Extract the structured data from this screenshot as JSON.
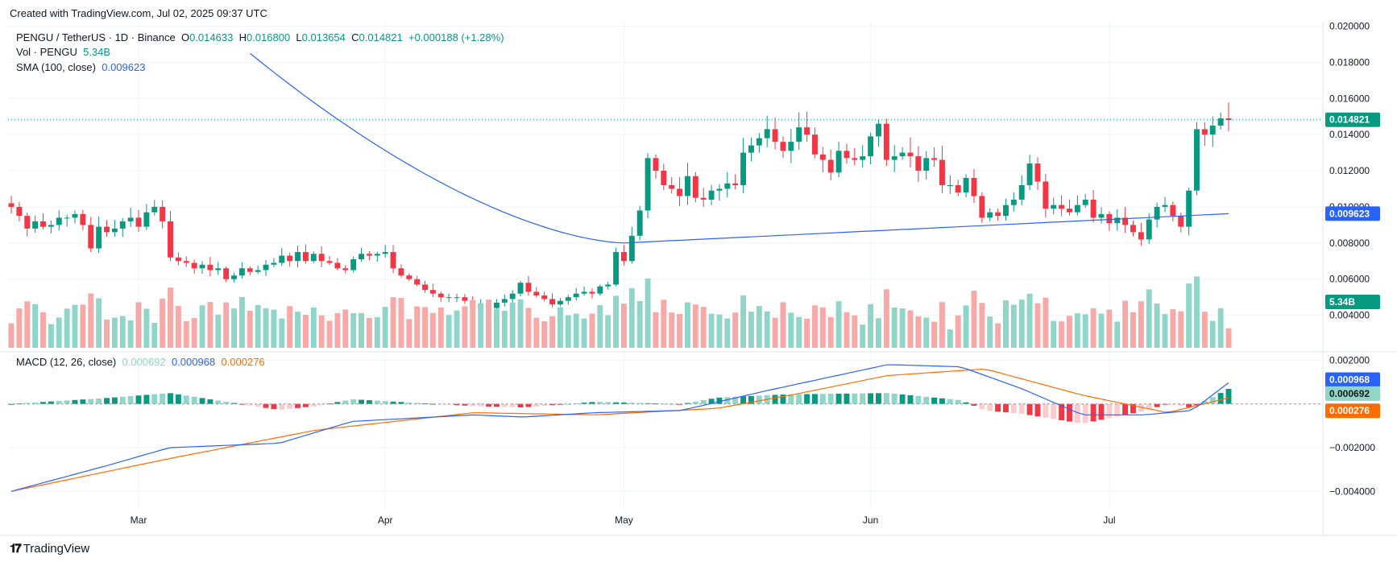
{
  "header": {
    "created": "Created with TradingView.com, Jul 02, 2025 09:37 UTC"
  },
  "footer": {
    "brand": "TradingView"
  },
  "legend": {
    "symbol": "PENGU / TetherUS · 1D · Binance",
    "o_label": "O",
    "o_value": "0.014633",
    "h_label": "H",
    "h_value": "0.016800",
    "l_label": "L",
    "l_value": "0.013654",
    "c_label": "C",
    "c_value": "0.014821",
    "change": "+0.000188 (+1.28%)",
    "vol_label": "Vol · PENGU",
    "vol_value": "5.34B",
    "sma_label": "SMA (100, close)",
    "sma_value": "0.009623",
    "macd_label": "MACD (12, 26, close)",
    "macd_hist": "0.000692",
    "macd_line": "0.000968",
    "macd_signal": "0.000276"
  },
  "colors": {
    "up": "#089981",
    "down": "#f23645",
    "vol_up": "#8fd6c8",
    "vol_down": "#f7a9a7",
    "sma": "#2962ff",
    "macd": "#2962ff",
    "signal": "#ff6d00",
    "grid": "#f0f3fa"
  },
  "chart_data": [
    {
      "type": "candlestick",
      "title": "PENGU / TetherUS · 1D · Binance",
      "x_ticks": [
        "Mar",
        "Apr",
        "May",
        "Jun",
        "Jul"
      ],
      "y_ticks": [
        "0.004000",
        "0.006000",
        "0.008000",
        "0.010000",
        "0.012000",
        "0.014000",
        "0.016000",
        "0.018000",
        "0.020000"
      ],
      "ylim": [
        0.0022,
        0.0202
      ],
      "last_price": "0.014821",
      "sma_last": "0.009623",
      "vol_last": "5.34B",
      "candles_close": [
        0.01,
        0.0095,
        0.0088,
        0.0092,
        0.0089,
        0.009,
        0.0094,
        0.0094,
        0.0096,
        0.009,
        0.0077,
        0.0089,
        0.0086,
        0.0088,
        0.0092,
        0.0094,
        0.0089,
        0.0097,
        0.01,
        0.0092,
        0.0072,
        0.007,
        0.0069,
        0.0066,
        0.0068,
        0.0065,
        0.0066,
        0.006,
        0.0062,
        0.0066,
        0.0064,
        0.0065,
        0.0068,
        0.0069,
        0.0073,
        0.007,
        0.0075,
        0.007,
        0.0074,
        0.007,
        0.0069,
        0.0066,
        0.0065,
        0.0071,
        0.0074,
        0.0073,
        0.0074,
        0.0075,
        0.0066,
        0.0062,
        0.006,
        0.0057,
        0.0054,
        0.0052,
        0.005,
        0.005,
        0.005,
        0.0048,
        0.0044,
        0.0046,
        0.0044,
        0.0047,
        0.0049,
        0.0052,
        0.0058,
        0.0053,
        0.0051,
        0.0049,
        0.0046,
        0.0048,
        0.005,
        0.0052,
        0.0053,
        0.0052,
        0.0056,
        0.0057,
        0.0075,
        0.007,
        0.0084,
        0.0098,
        0.0127,
        0.012,
        0.0112,
        0.011,
        0.0106,
        0.0117,
        0.0105,
        0.0104,
        0.0109,
        0.011,
        0.0113,
        0.0112,
        0.013,
        0.0134,
        0.0138,
        0.0143,
        0.0136,
        0.0131,
        0.0136,
        0.0144,
        0.014,
        0.0129,
        0.0126,
        0.0119,
        0.0131,
        0.0127,
        0.0126,
        0.0128,
        0.0139,
        0.0146,
        0.0126,
        0.0128,
        0.013,
        0.0128,
        0.012,
        0.0127,
        0.0126,
        0.0112,
        0.0112,
        0.0108,
        0.0116,
        0.0106,
        0.0094,
        0.0097,
        0.0095,
        0.0101,
        0.0104,
        0.0112,
        0.0124,
        0.0114,
        0.0099,
        0.0101,
        0.0099,
        0.0097,
        0.0101,
        0.0104,
        0.0094,
        0.0096,
        0.0091,
        0.0094,
        0.009,
        0.0086,
        0.0082,
        0.0093,
        0.01,
        0.0101,
        0.0095,
        0.0089,
        0.0109,
        0.0143,
        0.014,
        0.0145,
        0.0149,
        0.0148
      ],
      "sma_trend": "decline from ~0.0185 (late Mar) to ~0.0080 (mid May), rising to 0.009623"
    },
    {
      "type": "macd",
      "title": "MACD (12, 26, close)",
      "y_ticks": [
        "-0.004000",
        "-0.002000",
        "0.002000"
      ],
      "ylim": [
        -0.0048,
        0.0022
      ],
      "macd_last": "0.000968",
      "signal_last": "0.000276",
      "hist_last": "0.000692"
    }
  ]
}
